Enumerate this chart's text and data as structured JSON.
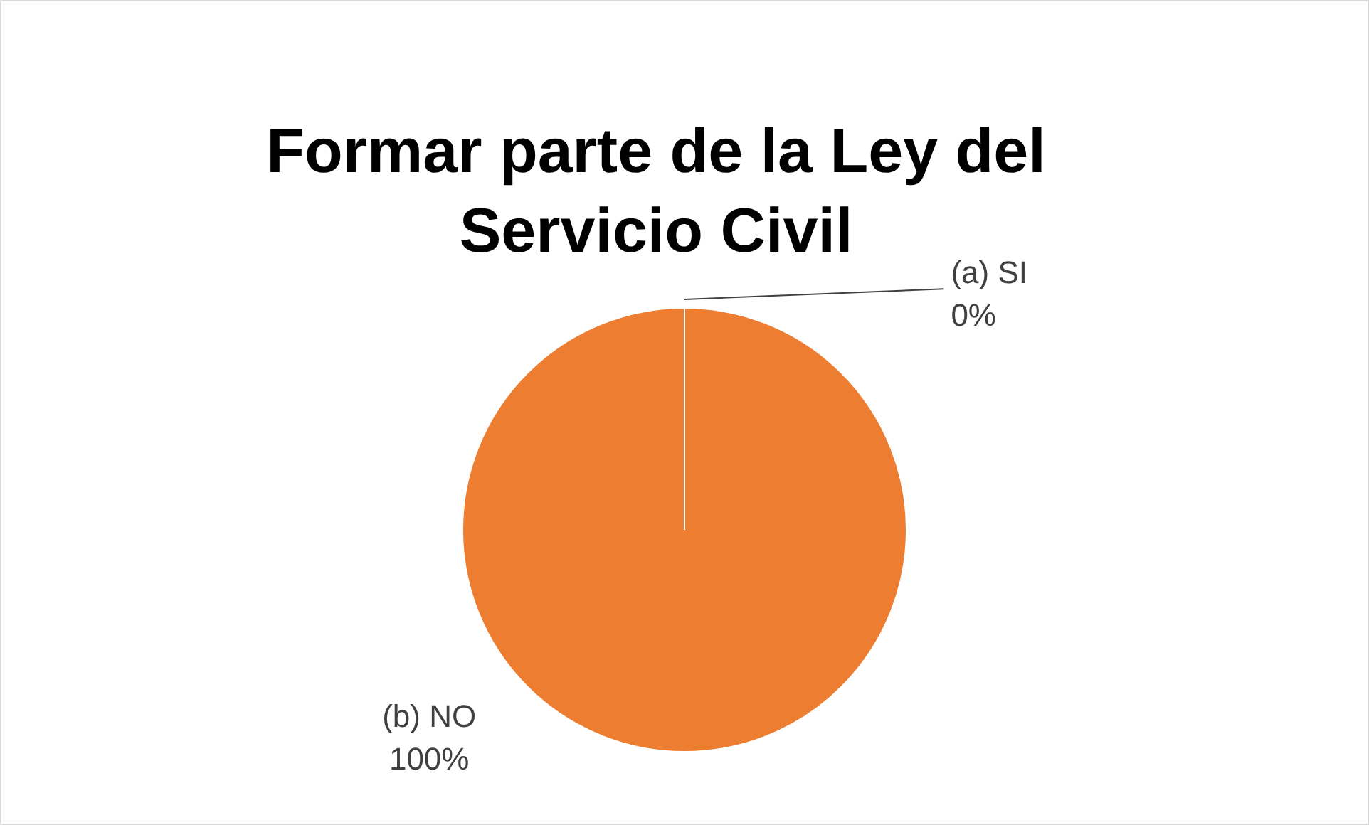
{
  "chart_data": {
    "type": "pie",
    "title": "Formar parte de la Ley del Servicio Civil",
    "categories": [
      "(a) SI",
      "(b) NO"
    ],
    "values": [
      0,
      100
    ],
    "colors": [
      "#4472c4",
      "#ed7d31"
    ],
    "value_labels": [
      "0%",
      "100%"
    ],
    "legend": false
  }
}
